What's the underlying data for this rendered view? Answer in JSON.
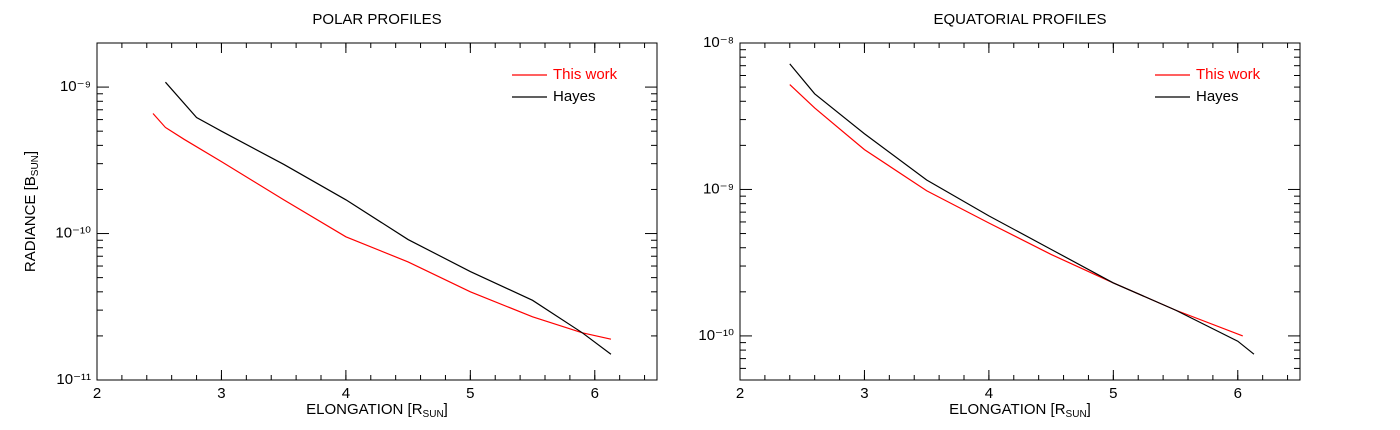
{
  "chart_data": [
    {
      "type": "line",
      "title": "POLAR PROFILES",
      "xlabel": [
        "ELONGATION [R",
        "SUN",
        "]"
      ],
      "ylabel": [
        "RADIANCE [B",
        "SUN",
        "]"
      ],
      "xlim": [
        2,
        6.5
      ],
      "xticks": [
        2,
        3,
        4,
        5,
        6
      ],
      "ylim": [
        1e-11,
        2e-09
      ],
      "log_y": true,
      "yticks": [
        {
          "value": 1e-11,
          "label": "10⁻¹¹"
        },
        {
          "value": 1e-10,
          "label": "10⁻¹⁰"
        },
        {
          "value": 1e-09,
          "label": "10⁻⁹"
        }
      ],
      "legend": "upper right",
      "series": [
        {
          "name": "This work",
          "color": "#ff0000",
          "x": [
            2.45,
            2.55,
            2.7,
            3.0,
            3.5,
            4.0,
            4.5,
            5.0,
            5.5,
            5.9,
            6.13
          ],
          "values": [
            6.6e-10,
            5.3e-10,
            4.4e-10,
            3.1e-10,
            1.7e-10,
            9.5e-11,
            6.4e-11,
            4e-11,
            2.7e-11,
            2.1e-11,
            1.9e-11
          ]
        },
        {
          "name": "Hayes",
          "color": "#000000",
          "x": [
            2.55,
            2.8,
            3.0,
            3.5,
            4.0,
            4.5,
            5.0,
            5.5,
            5.9,
            6.13
          ],
          "values": [
            1.08e-09,
            6.2e-10,
            5e-10,
            2.97e-10,
            1.7e-10,
            9.1e-11,
            5.5e-11,
            3.5e-11,
            2.1e-11,
            1.5e-11
          ]
        }
      ]
    },
    {
      "type": "line",
      "title": "EQUATORIAL PROFILES",
      "xlabel": [
        "ELONGATION [R",
        "SUN",
        "]"
      ],
      "xlim": [
        2,
        6.5
      ],
      "xticks": [
        2,
        3,
        4,
        5,
        6
      ],
      "ylim": [
        5e-11,
        1e-08
      ],
      "log_y": true,
      "yticks": [
        {
          "value": 1e-10,
          "label": "10⁻¹⁰"
        },
        {
          "value": 1e-09,
          "label": "10⁻⁹"
        },
        {
          "value": 1e-08,
          "label": "10⁻⁸"
        }
      ],
      "legend": "upper right",
      "series": [
        {
          "name": "This work",
          "color": "#ff0000",
          "x": [
            2.4,
            2.6,
            3.0,
            3.5,
            4.0,
            4.5,
            5.0,
            5.5,
            6.04
          ],
          "values": [
            5.2e-09,
            3.6e-09,
            1.87e-09,
            9.8e-10,
            5.9e-10,
            3.6e-10,
            2.3e-10,
            1.5e-10,
            1e-10
          ]
        },
        {
          "name": "Hayes",
          "color": "#000000",
          "x": [
            2.4,
            2.6,
            3.0,
            3.5,
            4.0,
            4.5,
            5.0,
            5.5,
            6.0,
            6.13
          ],
          "values": [
            7.2e-09,
            4.5e-09,
            2.4e-09,
            1.16e-09,
            6.6e-10,
            3.9e-10,
            2.3e-10,
            1.5e-10,
            9.2e-11,
            7.5e-11
          ]
        }
      ]
    }
  ]
}
